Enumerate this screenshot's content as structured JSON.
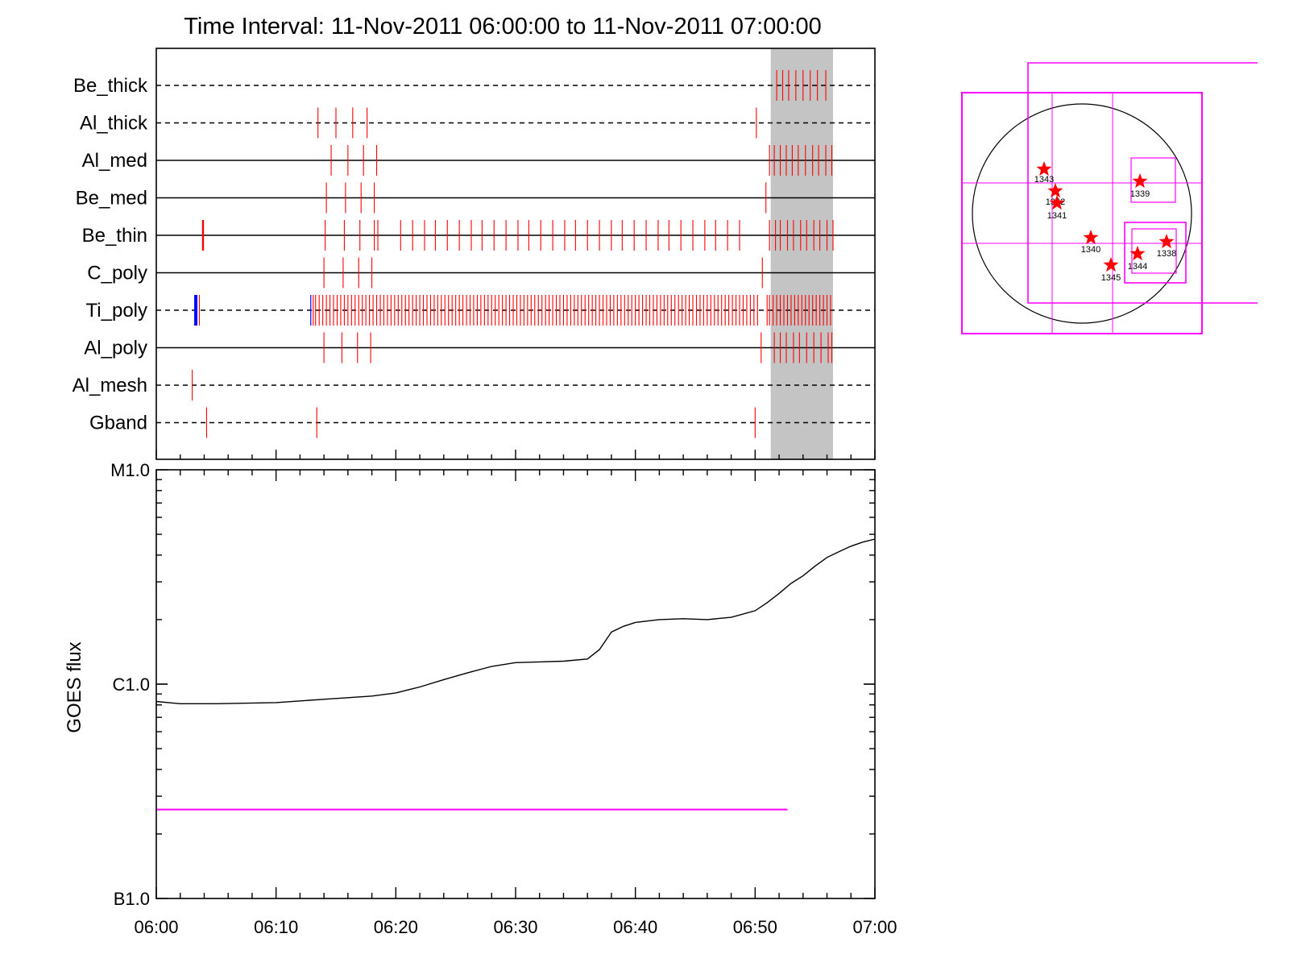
{
  "chart_data": [
    {
      "type": "timeline",
      "title": "Time Interval: 11-Nov-2011 06:00:00 to 11-Nov-2011 07:00:00",
      "x_range": [
        "06:00",
        "07:00"
      ],
      "shaded_interval": [
        "06:51.3",
        "06:56.5"
      ],
      "rows": [
        {
          "name": "Be_thick",
          "line": "dashed",
          "marks": [
            "06:51.8",
            "06:52.3",
            "06:52.8",
            "06:53.4",
            "06:54.0",
            "06:54.6",
            "06:55.2",
            "06:55.9"
          ]
        },
        {
          "name": "Al_thick",
          "line": "dashed",
          "marks": [
            "06:13.5",
            "06:15.0",
            "06:16.4",
            "06:17.6",
            "06:50.1"
          ]
        },
        {
          "name": "Al_med",
          "line": "solid",
          "marks": [
            "06:14.6",
            "06:16.0",
            "06:17.3",
            "06:18.4",
            "06:51.2",
            "06:51.6",
            "06:52.1",
            "06:52.6",
            "06:53.1",
            "06:53.6",
            "06:54.2",
            "06:54.8",
            "06:55.3",
            "06:55.9",
            "06:56.4"
          ]
        },
        {
          "name": "Be_med",
          "line": "solid",
          "marks": [
            "06:14.2",
            "06:15.8",
            "06:17.1",
            "06:18.2",
            "06:50.9"
          ]
        },
        {
          "name": "Be_thin",
          "line": "solid",
          "marks": [
            "06:03.9",
            "06:14.1",
            "06:15.7",
            "06:17.0",
            "06:18.2",
            "06:18.5",
            "06:20.4",
            "06:21.4",
            "06:22.4",
            "06:23.3",
            "06:24.3",
            "06:25.3",
            "06:26.3",
            "06:27.2",
            "06:28.2",
            "06:29.2",
            "06:30.2",
            "06:31.1",
            "06:32.1",
            "06:33.1",
            "06:34.1",
            "06:35.0",
            "06:36.0",
            "06:37.0",
            "06:38.0",
            "06:38.9",
            "06:39.9",
            "06:40.9",
            "06:41.9",
            "06:42.8",
            "06:43.8",
            "06:44.8",
            "06:45.8",
            "06:46.7",
            "06:47.7",
            "06:48.7",
            "06:51.2",
            "06:51.7",
            "06:52.1",
            "06:52.7",
            "06:53.2",
            "06:53.8",
            "06:54.3",
            "06:54.9",
            "06:55.4",
            "06:56.0",
            "06:56.5"
          ]
        },
        {
          "name": "C_poly",
          "line": "solid",
          "marks": [
            "06:14.0",
            "06:15.6",
            "06:16.9",
            "06:18.0",
            "06:50.6"
          ]
        },
        {
          "name": "Ti_poly",
          "line": "dashed",
          "marks": [
            "06:03.6",
            "06:13.1",
            "06:13.3",
            "06:13.6",
            "06:13.9",
            "06:14.2",
            "06:14.5",
            "06:14.8",
            "06:15.1",
            "06:15.4",
            "06:15.7",
            "06:16.0",
            "06:16.3",
            "06:16.6",
            "06:16.9",
            "06:17.2",
            "06:17.5",
            "06:17.8",
            "06:18.1",
            "06:18.4",
            "06:18.7",
            "06:19.0",
            "06:19.3",
            "06:19.6",
            "06:19.9",
            "06:20.2",
            "06:20.5",
            "06:20.8",
            "06:21.1",
            "06:21.4",
            "06:21.7",
            "06:22.0",
            "06:22.3",
            "06:22.6",
            "06:22.9",
            "06:23.2",
            "06:23.5",
            "06:23.8",
            "06:24.1",
            "06:24.4",
            "06:24.7",
            "06:25.0",
            "06:25.3",
            "06:25.6",
            "06:25.9",
            "06:26.2",
            "06:26.5",
            "06:26.8",
            "06:27.1",
            "06:27.4",
            "06:27.7",
            "06:28.0",
            "06:28.3",
            "06:28.6",
            "06:28.9",
            "06:29.2",
            "06:29.5",
            "06:29.8",
            "06:30.1",
            "06:30.4",
            "06:30.7",
            "06:31.0",
            "06:31.3",
            "06:31.6",
            "06:31.9",
            "06:32.2",
            "06:32.5",
            "06:32.8",
            "06:33.1",
            "06:33.4",
            "06:33.7",
            "06:34.0",
            "06:34.3",
            "06:34.6",
            "06:34.9",
            "06:35.2",
            "06:35.5",
            "06:35.8",
            "06:36.1",
            "06:36.4",
            "06:36.7",
            "06:37.0",
            "06:37.3",
            "06:37.6",
            "06:37.9",
            "06:38.2",
            "06:38.5",
            "06:38.8",
            "06:39.1",
            "06:39.4",
            "06:39.7",
            "06:40.0",
            "06:40.3",
            "06:40.6",
            "06:40.9",
            "06:41.2",
            "06:41.5",
            "06:41.8",
            "06:42.1",
            "06:42.4",
            "06:42.7",
            "06:43.0",
            "06:43.3",
            "06:43.6",
            "06:43.9",
            "06:44.2",
            "06:44.5",
            "06:44.8",
            "06:45.1",
            "06:45.4",
            "06:45.7",
            "06:46.0",
            "06:46.3",
            "06:46.6",
            "06:46.9",
            "06:47.2",
            "06:47.5",
            "06:47.8",
            "06:48.1",
            "06:48.4",
            "06:48.7",
            "06:49.0",
            "06:49.3",
            "06:49.6",
            "06:49.9",
            "06:50.2",
            "06:51.0",
            "06:51.2",
            "06:51.5",
            "06:51.8",
            "06:52.1",
            "06:52.4",
            "06:52.7",
            "06:53.0",
            "06:53.3",
            "06:53.6",
            "06:53.9",
            "06:54.2",
            "06:54.5",
            "06:54.8",
            "06:55.1",
            "06:55.4",
            "06:55.7",
            "06:56.0",
            "06:56.3"
          ],
          "blue_marks": [
            "06:03.3",
            "06:12.9"
          ]
        },
        {
          "name": "Al_poly",
          "line": "solid",
          "marks": [
            "06:14.0",
            "06:15.5",
            "06:16.8",
            "06:17.9",
            "06:50.5",
            "06:51.6",
            "06:52.1",
            "06:52.6",
            "06:53.2",
            "06:53.7",
            "06:54.3",
            "06:54.9",
            "06:55.5",
            "06:56.1",
            "06:56.4"
          ]
        },
        {
          "name": "Al_mesh",
          "line": "dashed",
          "marks": [
            "06:03.0"
          ]
        },
        {
          "name": "Gband",
          "line": "dashed",
          "marks": [
            "06:04.2",
            "06:13.4",
            "06:50.0"
          ]
        }
      ]
    },
    {
      "type": "line",
      "ylabel": "GOES flux",
      "y_scale": "log",
      "y_ticks": [
        "B1.0",
        "C1.0",
        "M1.0"
      ],
      "x_ticks": [
        "06:00",
        "06:10",
        "06:20",
        "06:30",
        "06:40",
        "06:50",
        "07:00"
      ],
      "series": [
        {
          "color": "#000000",
          "x_minutes": [
            0,
            1,
            2,
            3,
            5,
            10,
            14,
            18,
            20,
            22,
            24,
            26,
            28,
            30,
            32,
            34,
            36,
            37,
            38,
            39,
            40,
            42,
            44,
            46,
            48,
            50,
            51,
            52,
            53,
            54,
            55,
            56,
            57,
            58,
            59,
            60
          ],
          "y_class": [
            "C0.83",
            "C0.82",
            "C0.81",
            "C0.81",
            "C0.81",
            "C0.82",
            "C0.85",
            "C0.88",
            "C0.91",
            "C0.97",
            "C1.05",
            "C1.13",
            "C1.21",
            "C1.26",
            "C1.27",
            "C1.28",
            "C1.31",
            "C1.45",
            "C1.75",
            "C1.86",
            "C1.94",
            "C2.00",
            "C2.02",
            "C2.00",
            "C2.05",
            "C2.20",
            "C2.40",
            "C2.65",
            "C2.95",
            "C3.20",
            "C3.55",
            "C3.90",
            "C4.15",
            "C4.40",
            "C4.60",
            "C4.75"
          ]
        },
        {
          "color": "#ff00ff",
          "x_minutes": [
            0,
            52.7
          ],
          "y_class": [
            "B2.6",
            "B2.6"
          ]
        }
      ]
    },
    {
      "type": "diagram",
      "regions": [
        {
          "label": "1343",
          "marker": "star"
        },
        {
          "label": "1342",
          "marker": "star"
        },
        {
          "label": "1341",
          "marker": "star"
        },
        {
          "label": "1339",
          "marker": "star"
        },
        {
          "label": "1340",
          "marker": "star"
        },
        {
          "label": "1338",
          "marker": "star"
        },
        {
          "label": "1344",
          "marker": "star"
        },
        {
          "label": "1345",
          "marker": "star"
        }
      ]
    }
  ]
}
